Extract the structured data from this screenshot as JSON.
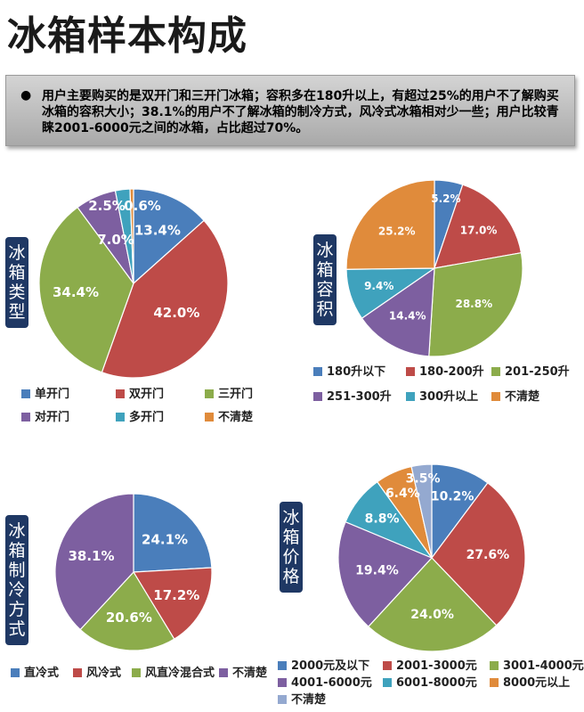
{
  "title": "冰箱样本构成",
  "summary": {
    "bullet": "●",
    "text": "用户主要购买的是双开门和三开门冰箱；容积多在180升以上，有超过25%的用户不了解购买冰箱的容积大小；38.1%的用户不了解冰箱的制冷方式，风冷式冰箱相对少一些；用户比较青睐2001-6000元之间的冰箱，占比超过70%。"
  },
  "chart_data": [
    {
      "type": "pie",
      "label": "冰箱类型",
      "categories": [
        "单开门",
        "双开门",
        "三开门",
        "对开门",
        "多开门",
        "不清楚"
      ],
      "values": [
        13.4,
        42.0,
        34.4,
        7.0,
        2.5,
        0.6
      ],
      "labels": [
        "13.4%",
        "42.0%",
        "34.4%",
        "7.0%",
        "2.5%",
        "0.6%"
      ],
      "colors": [
        "#4a7ebb",
        "#be4b48",
        "#8cac4b",
        "#7d5fa0",
        "#3fa2bd",
        "#e08b3b"
      ],
      "legend_position": "bottom"
    },
    {
      "type": "pie",
      "label": "冰箱容积",
      "categories": [
        "180升以下",
        "180-200升",
        "201-250升",
        "251-300升",
        "300升以上",
        "不清楚"
      ],
      "values": [
        5.2,
        17.0,
        28.8,
        14.4,
        9.4,
        25.2
      ],
      "labels": [
        "5.2%",
        "17.0%",
        "28.8%",
        "14.4%",
        "9.4%",
        "25.2%"
      ],
      "colors": [
        "#4a7ebb",
        "#be4b48",
        "#8cac4b",
        "#7d5fa0",
        "#3fa2bd",
        "#e08b3b"
      ],
      "legend_position": "bottom"
    },
    {
      "type": "pie",
      "label": "冰箱制冷方式",
      "categories": [
        "直冷式",
        "风冷式",
        "风直冷混合式",
        "不清楚"
      ],
      "values": [
        24.1,
        17.2,
        20.6,
        38.1
      ],
      "labels": [
        "24.1%",
        "17.2%",
        "20.6%",
        "38.1%"
      ],
      "colors": [
        "#4a7ebb",
        "#be4b48",
        "#8cac4b",
        "#7d5fa0"
      ],
      "legend_position": "bottom"
    },
    {
      "type": "pie",
      "label": "冰箱价格",
      "categories": [
        "2000元及以下",
        "2001-3000元",
        "3001-4000元",
        "4001-6000元",
        "6001-8000元",
        "8000元以上",
        "不清楚"
      ],
      "values": [
        10.2,
        27.6,
        24.0,
        19.4,
        8.8,
        6.4,
        3.5
      ],
      "labels": [
        "10.2%",
        "27.6%",
        "24.0%",
        "19.4%",
        "8.8%",
        "6.4%",
        "3.5%"
      ],
      "colors": [
        "#4a7ebb",
        "#be4b48",
        "#8cac4b",
        "#7d5fa0",
        "#3fa2bd",
        "#e08b3b",
        "#94a9d0"
      ],
      "legend_position": "bottom"
    }
  ]
}
